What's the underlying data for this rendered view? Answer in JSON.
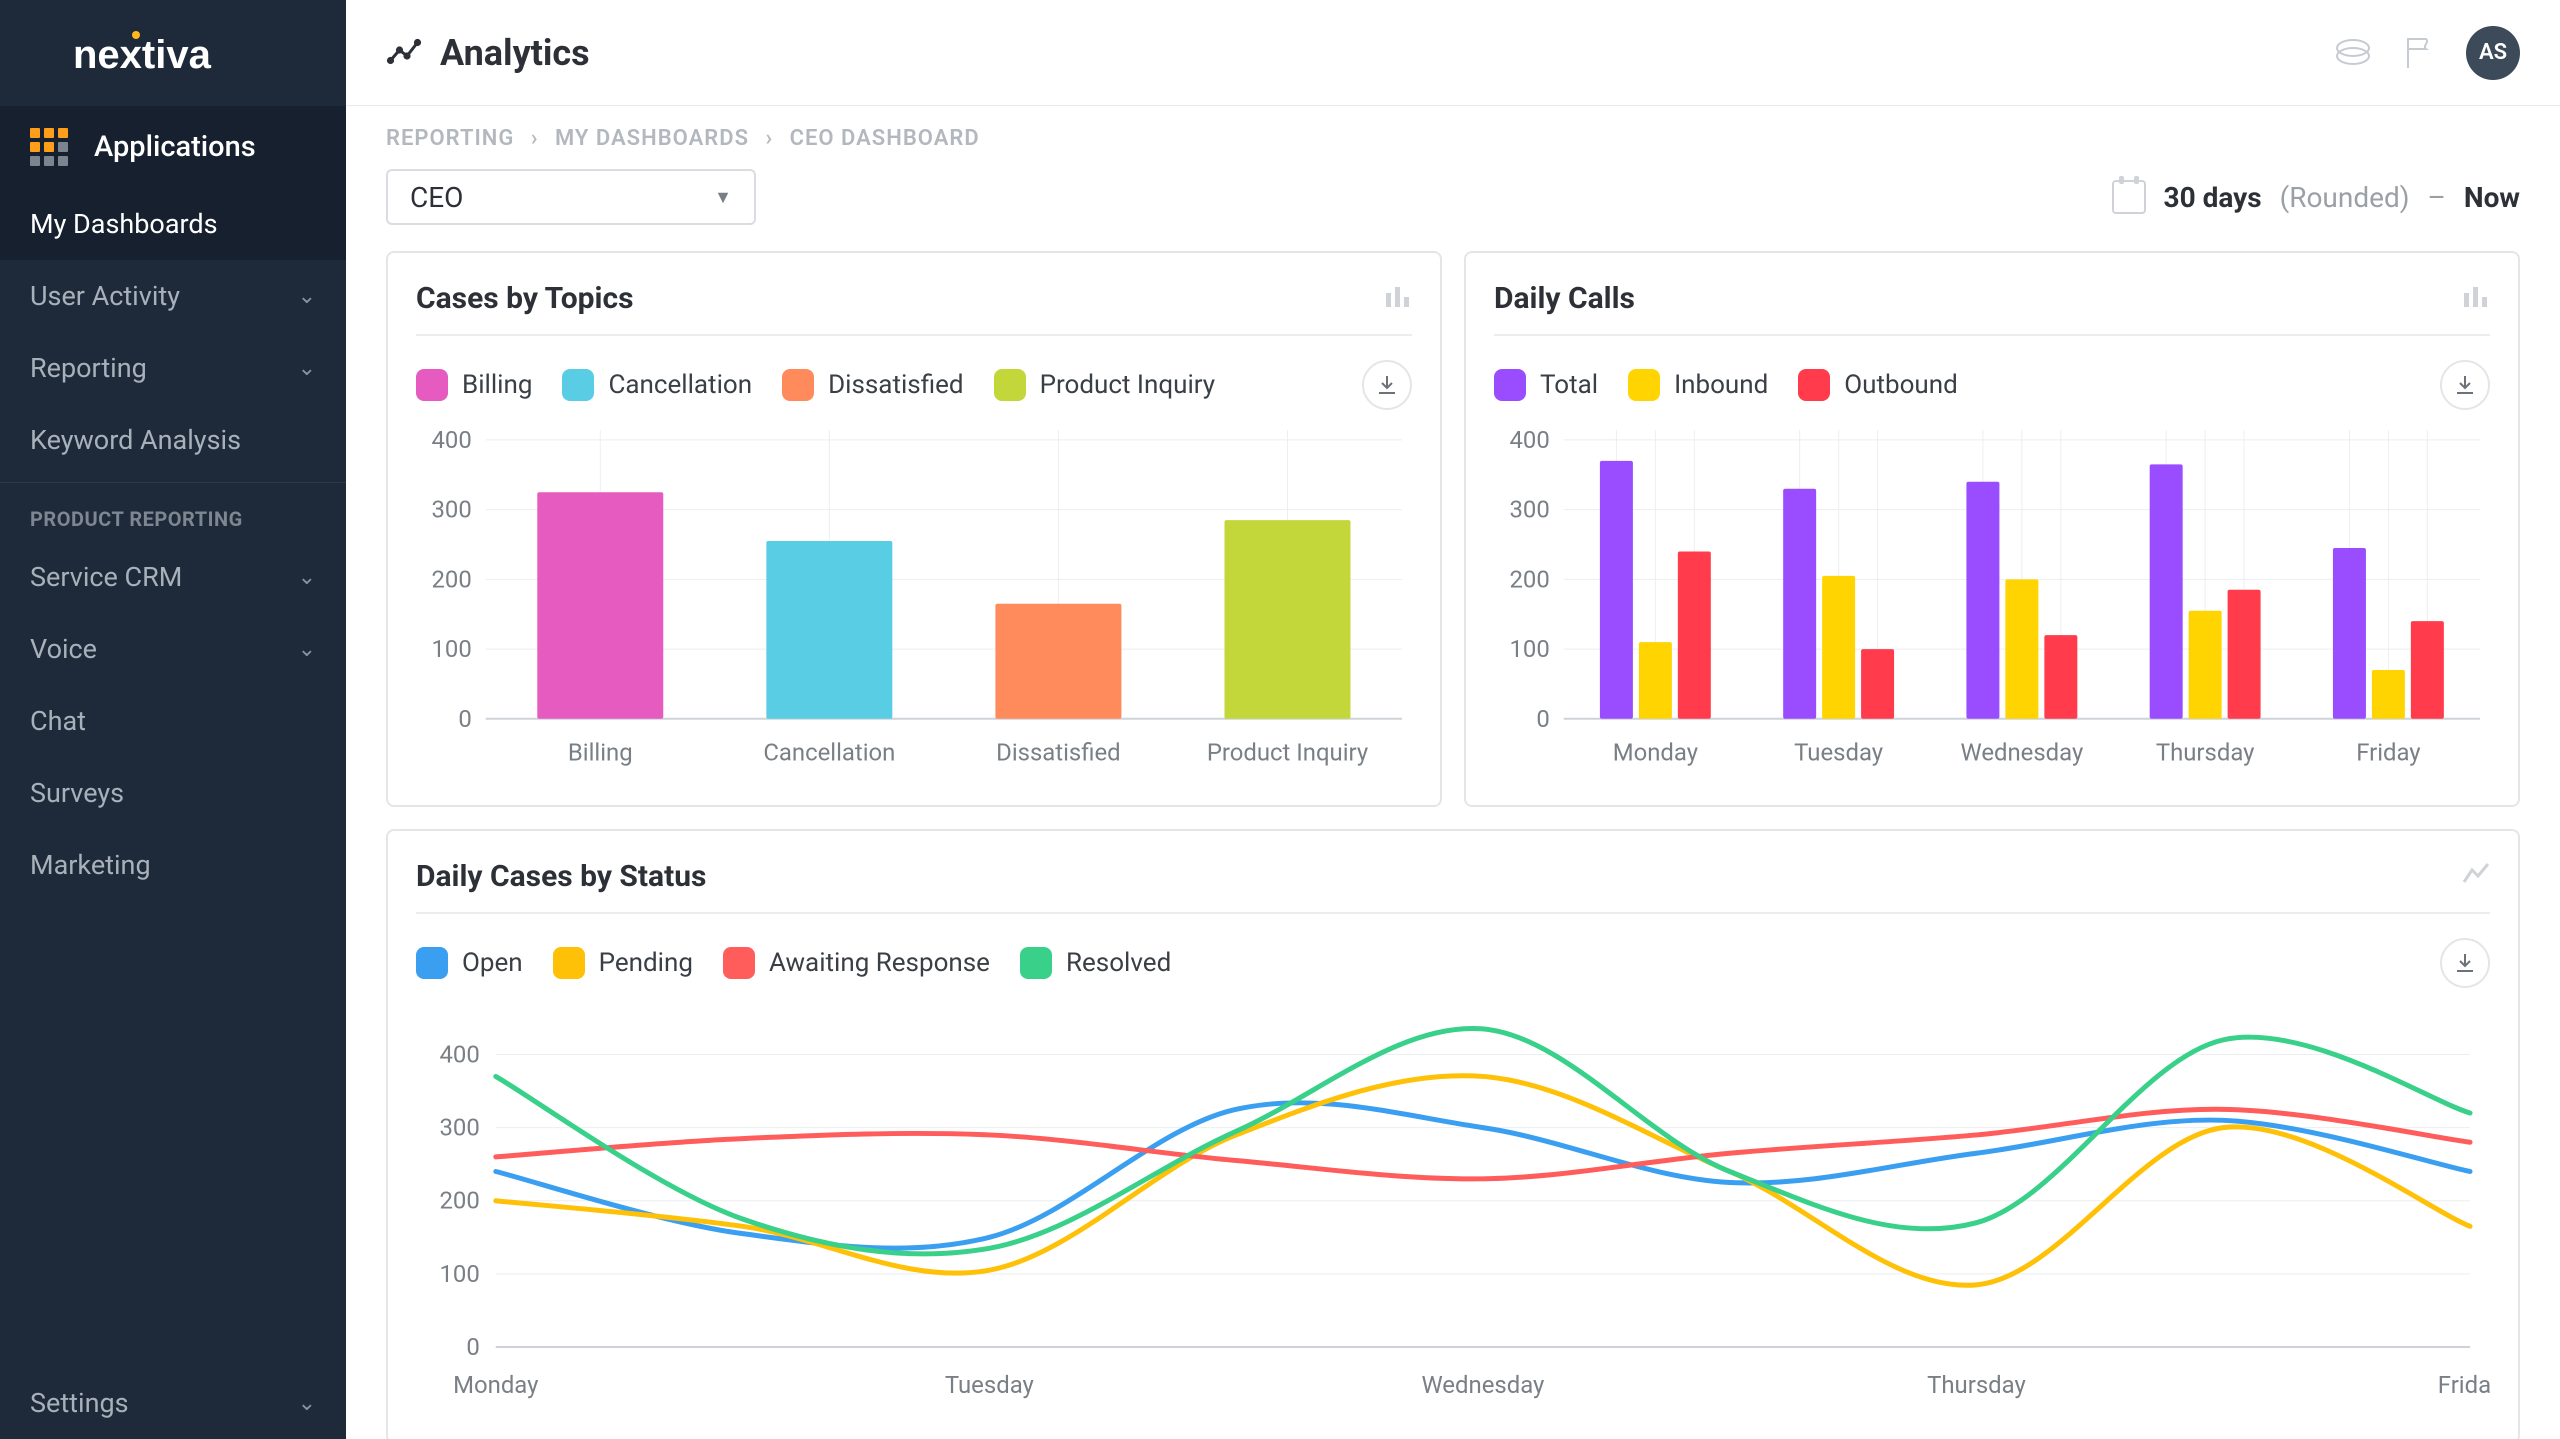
{
  "brand": "nextiva",
  "sidebar": {
    "apps_label": "Applications",
    "items_top": [
      {
        "label": "My Dashboards",
        "chev": false,
        "active": true
      },
      {
        "label": "User Activity",
        "chev": true,
        "active": false
      },
      {
        "label": "Reporting",
        "chev": true,
        "active": false
      },
      {
        "label": "Keyword Analysis",
        "chev": false,
        "active": false
      }
    ],
    "section_label": "PRODUCT REPORTING",
    "items_bottom": [
      {
        "label": "Service CRM",
        "chev": true
      },
      {
        "label": "Voice",
        "chev": true
      },
      {
        "label": "Chat",
        "chev": false
      },
      {
        "label": "Surveys",
        "chev": false
      },
      {
        "label": "Marketing",
        "chev": false
      }
    ],
    "settings_label": "Settings"
  },
  "header": {
    "title": "Analytics",
    "avatar": "AS"
  },
  "breadcrumb": [
    "REPORTING",
    "MY DASHBOARDS",
    "CEO DASHBOARD"
  ],
  "dashboard_select": "CEO",
  "daterange": {
    "range": "30 days",
    "paren": "(Rounded)",
    "dash": "–",
    "now": "Now"
  },
  "cases_by_topics": {
    "title": "Cases by Topics",
    "type": "bar",
    "categories": [
      "Billing",
      "Cancellation",
      "Dissatisfied",
      "Product Inquiry"
    ],
    "values": [
      325,
      255,
      165,
      285
    ],
    "colors": [
      "#e65bc0",
      "#59cde4",
      "#ff8a5c",
      "#c3d73a"
    ],
    "legend": [
      {
        "label": "Billing",
        "color": "#e65bc0"
      },
      {
        "label": "Cancellation",
        "color": "#59cde4"
      },
      {
        "label": "Dissatisfied",
        "color": "#ff8a5c"
      },
      {
        "label": "Product Inquiry",
        "color": "#c3d73a"
      }
    ],
    "ylim": [
      0,
      400
    ],
    "ytick_step": 100,
    "grid_color": "#eceef0",
    "label_color": "#7a7f85",
    "label_fontsize": 24,
    "bar_width": 0.55
  },
  "daily_calls": {
    "title": "Daily Calls",
    "type": "grouped-bar",
    "categories": [
      "Monday",
      "Tuesday",
      "Wednesday",
      "Thursday",
      "Friday"
    ],
    "series": [
      {
        "label": "Total",
        "color": "#9a4dff",
        "values": [
          370,
          330,
          340,
          365,
          245
        ]
      },
      {
        "label": "Inbound",
        "color": "#ffd400",
        "values": [
          110,
          205,
          200,
          155,
          70
        ]
      },
      {
        "label": "Outbound",
        "color": "#ff3b4c",
        "values": [
          240,
          100,
          120,
          185,
          140
        ]
      }
    ],
    "ylim": [
      0,
      400
    ],
    "ytick_step": 100,
    "grid_color": "#eceef0",
    "label_color": "#7a7f85",
    "label_fontsize": 24,
    "bar_width": 0.18
  },
  "daily_cases_by_status": {
    "title": "Daily Cases by Status",
    "type": "line-smooth",
    "categories": [
      "Monday",
      "Tuesday",
      "Wednesday",
      "Thursday",
      "Friday"
    ],
    "series": [
      {
        "label": "Open",
        "color": "#3a9ff0",
        "values": [
          240,
          150,
          300,
          265,
          240
        ],
        "mid": [
          155,
          325,
          225,
          310
        ]
      },
      {
        "label": "Pending",
        "color": "#ffc107",
        "values": [
          200,
          105,
          370,
          85,
          165
        ],
        "mid": [
          165,
          290,
          240,
          300
        ]
      },
      {
        "label": "Awaiting Response",
        "color": "#ff5c5c",
        "values": [
          260,
          290,
          230,
          290,
          280
        ],
        "mid": [
          285,
          255,
          265,
          325
        ]
      },
      {
        "label": "Resolved",
        "color": "#39d08a",
        "values": [
          370,
          135,
          435,
          170,
          320
        ],
        "mid": [
          175,
          295,
          240,
          420
        ]
      }
    ],
    "ylim": [
      0,
      450
    ],
    "yticks": [
      0,
      100,
      200,
      300,
      400
    ],
    "grid_color": "#eceef0",
    "label_color": "#7a7f85",
    "label_fontsize": 24,
    "line_width": 5
  }
}
